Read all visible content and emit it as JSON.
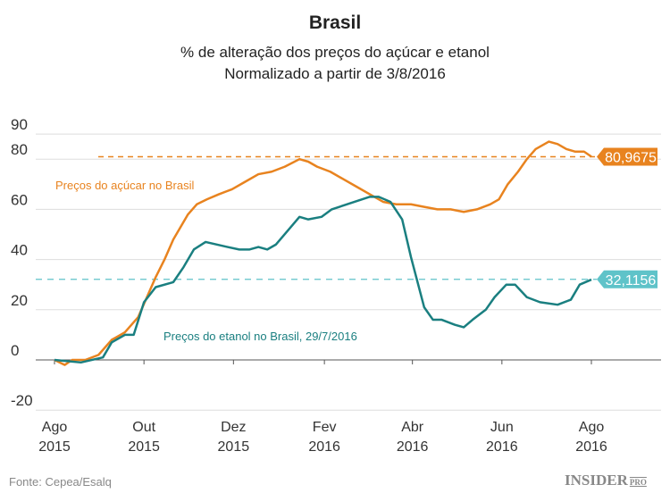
{
  "chart_data": {
    "type": "line",
    "title": "Brasil",
    "subtitle": [
      "% de alteração dos preços do açúcar e etanol",
      "Normalizado a partir de 3/8/2016"
    ],
    "xlabel": "",
    "ylabel": "",
    "ylim": [
      -20,
      90
    ],
    "yticks": [
      90,
      80,
      60,
      40,
      20,
      0,
      -20
    ],
    "xticks": [
      {
        "date": "2015-08-01",
        "label": [
          "Ago",
          "2015"
        ]
      },
      {
        "date": "2015-10-01",
        "label": [
          "Out",
          "2015"
        ]
      },
      {
        "date": "2015-12-01",
        "label": [
          "Dez",
          "2015"
        ]
      },
      {
        "date": "2016-02-01",
        "label": [
          "Fev",
          "2016"
        ]
      },
      {
        "date": "2016-04-01",
        "label": [
          "Abr",
          "2016"
        ]
      },
      {
        "date": "2016-06-01",
        "label": [
          "Jun",
          "2016"
        ]
      },
      {
        "date": "2016-08-01",
        "label": [
          "Ago",
          "2016"
        ]
      }
    ],
    "xlim": [
      "2015-07-15",
      "2016-09-30"
    ],
    "grid": true,
    "colors": {
      "sugar": "#e8831f",
      "ethanol": "#1a7f80",
      "ethanol_ref": "#5fc3c9"
    },
    "series": [
      {
        "name": "Preços do açúcar no Brasil",
        "color": "#e8831f",
        "ref_value": 80.9675,
        "ref_label": "80,9675",
        "points": [
          [
            "2015-08-01",
            0
          ],
          [
            "2015-08-08",
            -2
          ],
          [
            "2015-08-13",
            0
          ],
          [
            "2015-08-22",
            0
          ],
          [
            "2015-08-31",
            2
          ],
          [
            "2015-09-09",
            8
          ],
          [
            "2015-09-18",
            11
          ],
          [
            "2015-09-27",
            17
          ],
          [
            "2015-10-03",
            25
          ],
          [
            "2015-10-09",
            33
          ],
          [
            "2015-10-15",
            40
          ],
          [
            "2015-10-21",
            48
          ],
          [
            "2015-10-31",
            58
          ],
          [
            "2015-11-06",
            62
          ],
          [
            "2015-11-13",
            64
          ],
          [
            "2015-11-21",
            66
          ],
          [
            "2015-11-30",
            68
          ],
          [
            "2015-12-09",
            71
          ],
          [
            "2015-12-18",
            74
          ],
          [
            "2015-12-27",
            75
          ],
          [
            "2016-01-05",
            77
          ],
          [
            "2016-01-15",
            80
          ],
          [
            "2016-01-21",
            79
          ],
          [
            "2016-01-27",
            77
          ],
          [
            "2016-02-05",
            75
          ],
          [
            "2016-02-14",
            72
          ],
          [
            "2016-02-23",
            69
          ],
          [
            "2016-03-03",
            66
          ],
          [
            "2016-03-12",
            63
          ],
          [
            "2016-03-21",
            62
          ],
          [
            "2016-03-31",
            62
          ],
          [
            "2016-04-09",
            61
          ],
          [
            "2016-04-18",
            60
          ],
          [
            "2016-04-27",
            60
          ],
          [
            "2016-05-06",
            59
          ],
          [
            "2016-05-15",
            60
          ],
          [
            "2016-05-24",
            62
          ],
          [
            "2016-05-30",
            64
          ],
          [
            "2016-06-05",
            70
          ],
          [
            "2016-06-12",
            75
          ],
          [
            "2016-06-18",
            80
          ],
          [
            "2016-06-24",
            84
          ],
          [
            "2016-07-03",
            87
          ],
          [
            "2016-07-09",
            86
          ],
          [
            "2016-07-15",
            84
          ],
          [
            "2016-07-21",
            83
          ],
          [
            "2016-07-27",
            83
          ],
          [
            "2016-08-01",
            81
          ]
        ]
      },
      {
        "name": "Preços do etanol no Brasil, 29/7/2016",
        "color": "#1a7f80",
        "ref_value": 32.1156,
        "ref_label": "32,1156",
        "points": [
          [
            "2015-08-01",
            0
          ],
          [
            "2015-08-19",
            -1
          ],
          [
            "2015-09-03",
            1
          ],
          [
            "2015-09-09",
            7
          ],
          [
            "2015-09-18",
            10
          ],
          [
            "2015-09-24",
            10
          ],
          [
            "2015-10-01",
            23
          ],
          [
            "2015-10-09",
            29
          ],
          [
            "2015-10-21",
            31
          ],
          [
            "2015-10-28",
            37
          ],
          [
            "2015-11-04",
            44
          ],
          [
            "2015-11-12",
            47
          ],
          [
            "2015-11-27",
            45
          ],
          [
            "2015-12-05",
            44
          ],
          [
            "2015-12-12",
            44
          ],
          [
            "2015-12-18",
            45
          ],
          [
            "2015-12-24",
            44
          ],
          [
            "2015-12-30",
            46
          ],
          [
            "2016-01-15",
            57
          ],
          [
            "2016-01-21",
            56
          ],
          [
            "2016-01-30",
            57
          ],
          [
            "2016-02-06",
            60
          ],
          [
            "2016-03-03",
            65
          ],
          [
            "2016-03-09",
            65
          ],
          [
            "2016-03-17",
            63
          ],
          [
            "2016-03-25",
            56
          ],
          [
            "2016-03-31",
            41
          ],
          [
            "2016-04-09",
            21
          ],
          [
            "2016-04-15",
            16
          ],
          [
            "2016-04-21",
            16
          ],
          [
            "2016-04-30",
            14
          ],
          [
            "2016-05-06",
            13
          ],
          [
            "2016-05-12",
            16
          ],
          [
            "2016-05-21",
            20
          ],
          [
            "2016-05-27",
            25
          ],
          [
            "2016-06-04",
            30
          ],
          [
            "2016-06-10",
            30
          ],
          [
            "2016-06-18",
            25
          ],
          [
            "2016-06-27",
            23
          ],
          [
            "2016-07-09",
            22
          ],
          [
            "2016-07-18",
            24
          ],
          [
            "2016-07-24",
            30
          ],
          [
            "2016-08-01",
            32
          ]
        ]
      }
    ]
  },
  "footer": {
    "source": "Fonte: Cepea/Esalq",
    "logo": "INSIDER",
    "logo_suffix": "PRO"
  }
}
